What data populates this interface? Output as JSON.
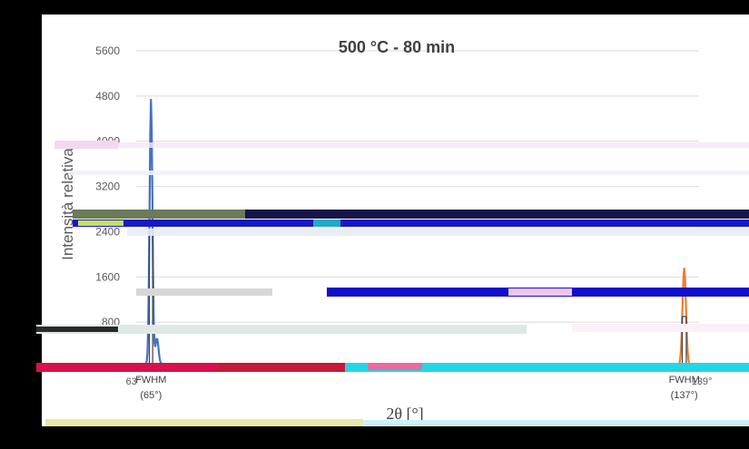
{
  "chart_data": {
    "type": "line",
    "title": "500 °C - 80 min",
    "xlabel": "2θ [°]",
    "ylabel": "Intensità relativa",
    "ylim": [
      0,
      5600
    ],
    "xlim": [
      63,
      139
    ],
    "y_ticks": [
      "5600",
      "4800",
      "4000",
      "3200",
      "2400",
      "1600",
      "800"
    ],
    "y_tick_values": [
      5600,
      4800,
      4000,
      3200,
      2400,
      1600,
      800
    ],
    "x_ticks": [
      {
        "label": "63°",
        "value": 63
      },
      {
        "label": "139°",
        "value": 139
      }
    ],
    "annotations": [
      {
        "line1": "FWHM",
        "line2": "(65°)",
        "x": 65
      },
      {
        "line1": "FWHM",
        "line2": "(137°)",
        "x": 137
      }
    ],
    "grid": true,
    "legend": "none",
    "series": [
      {
        "color": "#4472C4",
        "peak": {
          "x": 65,
          "y": 4750,
          "fwhm": 0.45
        },
        "secondary": {
          "x": 65.8,
          "y": 450,
          "fwhm": 0.5
        },
        "baseline": 60
      },
      {
        "color": "#ED7D31",
        "peak": {
          "x": 137,
          "y": 1760,
          "fwhm": 0.55
        },
        "baseline": 40
      }
    ]
  }
}
